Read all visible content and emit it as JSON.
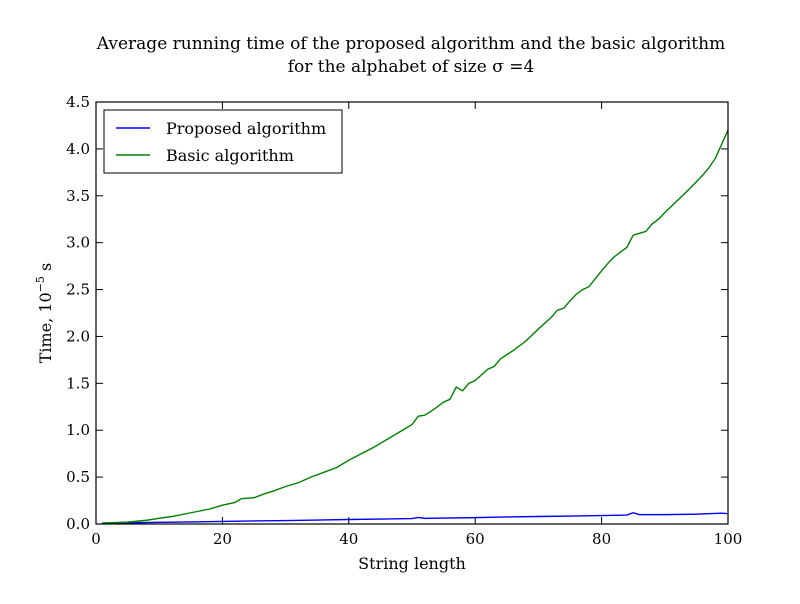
{
  "chart_data": {
    "type": "line",
    "title": "Average running time of the proposed algorithm and the basic algorithm",
    "subtitle": "for the alphabet of size σ =4",
    "xlabel": "String length",
    "ylabel": "Time, 10",
    "ylabel_exponent": "−5",
    "ylabel_unit": " s",
    "xlim": [
      0,
      100
    ],
    "ylim": [
      0,
      4.5
    ],
    "x_ticks": [
      0,
      20,
      40,
      60,
      80,
      100
    ],
    "x_tick_labels": [
      "0",
      "20",
      "40",
      "60",
      "80",
      "100"
    ],
    "y_ticks": [
      0,
      0.5,
      1.0,
      1.5,
      2.0,
      2.5,
      3.0,
      3.5,
      4.0,
      4.5
    ],
    "y_tick_labels": [
      "0.0",
      "0.5",
      "1.0",
      "1.5",
      "2.0",
      "2.5",
      "3.0",
      "3.5",
      "4.0",
      "4.5"
    ],
    "grid": false,
    "legend_position": "top-left",
    "series": [
      {
        "name": "Proposed algorithm",
        "color": "#0000ff",
        "x": [
          1,
          5,
          10,
          15,
          20,
          25,
          30,
          35,
          40,
          45,
          50,
          51,
          52,
          55,
          60,
          65,
          70,
          75,
          80,
          84,
          85,
          86,
          90,
          95,
          99,
          100
        ],
        "y": [
          0.01,
          0.012,
          0.018,
          0.022,
          0.027,
          0.033,
          0.037,
          0.042,
          0.048,
          0.053,
          0.058,
          0.07,
          0.06,
          0.063,
          0.068,
          0.075,
          0.08,
          0.085,
          0.09,
          0.095,
          0.12,
          0.1,
          0.1,
          0.105,
          0.115,
          0.11
        ]
      },
      {
        "name": "Basic algorithm",
        "color": "#008000",
        "x": [
          1,
          5,
          8,
          10,
          12,
          15,
          18,
          20,
          22,
          23,
          25,
          27,
          28,
          30,
          32,
          34,
          36,
          38,
          40,
          42,
          44,
          46,
          48,
          50,
          51,
          52,
          53,
          54,
          55,
          56,
          57,
          58,
          59,
          60,
          62,
          63,
          64,
          66,
          68,
          70,
          72,
          73,
          74,
          75,
          76,
          77,
          78,
          80,
          81,
          82,
          83,
          84,
          85,
          86,
          87,
          88,
          89,
          90,
          92,
          94,
          95,
          96,
          97,
          98,
          99,
          100
        ],
        "y": [
          0.01,
          0.02,
          0.04,
          0.06,
          0.08,
          0.12,
          0.16,
          0.2,
          0.23,
          0.27,
          0.28,
          0.33,
          0.35,
          0.4,
          0.44,
          0.5,
          0.55,
          0.6,
          0.68,
          0.75,
          0.82,
          0.9,
          0.98,
          1.06,
          1.15,
          1.16,
          1.2,
          1.25,
          1.3,
          1.33,
          1.46,
          1.42,
          1.5,
          1.53,
          1.65,
          1.68,
          1.76,
          1.85,
          1.95,
          2.08,
          2.2,
          2.28,
          2.3,
          2.38,
          2.45,
          2.5,
          2.53,
          2.7,
          2.78,
          2.85,
          2.9,
          2.95,
          3.08,
          3.1,
          3.12,
          3.2,
          3.25,
          3.32,
          3.45,
          3.58,
          3.65,
          3.72,
          3.8,
          3.9,
          4.05,
          4.2
        ]
      }
    ]
  }
}
